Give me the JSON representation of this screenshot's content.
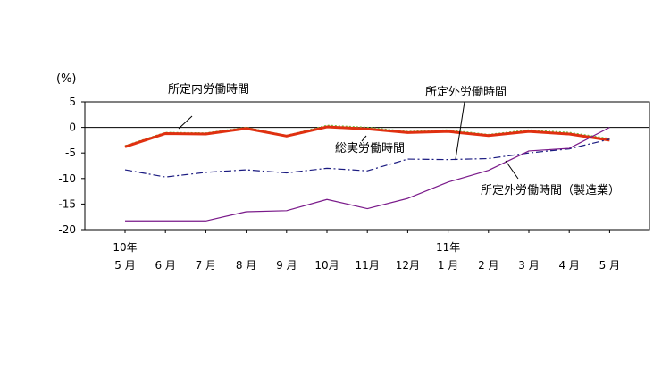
{
  "chart_data": {
    "type": "line",
    "unit_label": "(%)",
    "ylim": [
      -20,
      5
    ],
    "y_ticks": [
      "5",
      "0",
      "-5",
      "-10",
      "-15",
      "-20"
    ],
    "y_tick_values": [
      5,
      0,
      -5,
      -10,
      -15,
      -20
    ],
    "x_year_labels": [
      {
        "index": 0,
        "text": "10年"
      },
      {
        "index": 8,
        "text": "11年"
      }
    ],
    "categories": [
      "5 月",
      "6 月",
      "7 月",
      "8 月",
      "9 月",
      "10月",
      "11月",
      "12月",
      "1 月",
      "2 月",
      "3 月",
      "4 月",
      "5 月"
    ],
    "series": [
      {
        "name": "所定内労働時間",
        "color": "#70c040",
        "style": "dotted",
        "values": [
          -3.6,
          -1.0,
          -1.1,
          0.0,
          -1.6,
          0.4,
          0.0,
          -0.8,
          -0.5,
          -1.4,
          -0.5,
          -1.0,
          -2.2
        ]
      },
      {
        "name": "総実労働時間",
        "color": "#e03010",
        "style": "solid-thick",
        "values": [
          -3.8,
          -1.2,
          -1.3,
          -0.2,
          -1.7,
          0.1,
          -0.3,
          -1.0,
          -0.8,
          -1.6,
          -0.8,
          -1.3,
          -2.5
        ]
      },
      {
        "name": "所定外労働時間",
        "color": "#1a1a80",
        "style": "dashdot",
        "values": [
          -8.3,
          -9.7,
          -8.8,
          -8.3,
          -8.9,
          -8.0,
          -8.5,
          -6.2,
          -6.3,
          -6.1,
          -5.0,
          -4.2,
          -2.3
        ]
      },
      {
        "name": "所定外労働時間（製造業）",
        "color": "#7a1a8a",
        "style": "solid",
        "values": [
          -18.3,
          -18.3,
          -18.3,
          -16.5,
          -16.3,
          -14.1,
          -15.9,
          -13.9,
          -10.7,
          -8.4,
          -4.6,
          -4.1,
          0.0
        ]
      }
    ],
    "annotations": [
      {
        "series": 0,
        "text": "所定内労働時間"
      },
      {
        "series": 1,
        "text": "総実労働時間"
      },
      {
        "series": 2,
        "text": "所定外労働時間"
      },
      {
        "series": 3,
        "text": "所定外労働時間（製造業）"
      }
    ],
    "grid": false
  }
}
